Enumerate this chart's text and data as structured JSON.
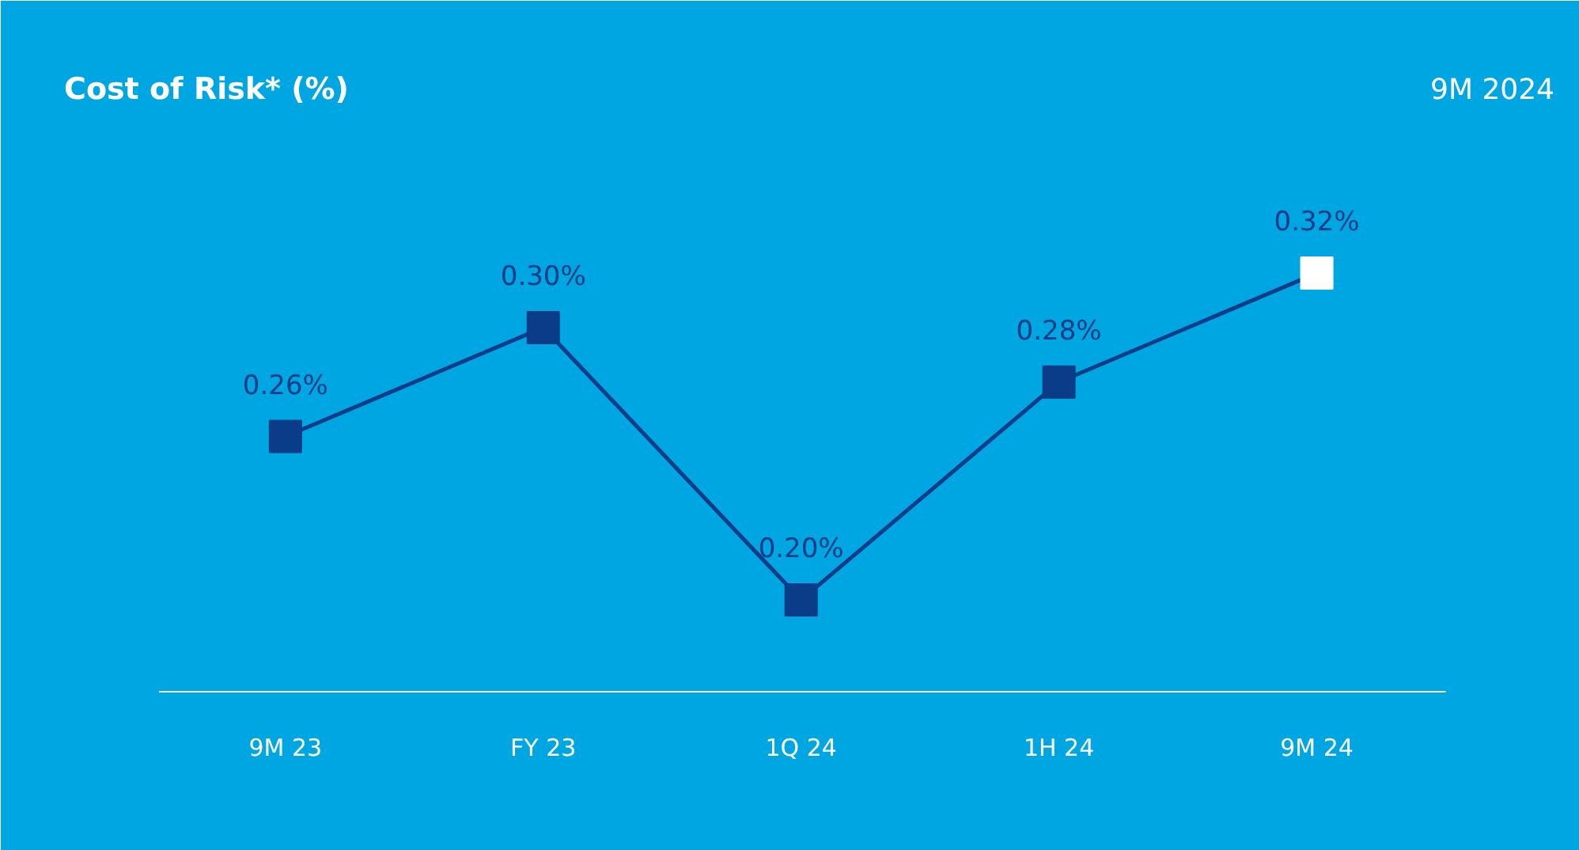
{
  "chart_data": {
    "type": "line",
    "title": "Cost of Risk* (%)",
    "subtitle": "9M 2024",
    "categories": [
      "9M 23",
      "FY 23",
      "1Q 24",
      "1H 24",
      "9M 24"
    ],
    "series": [
      {
        "color": "#0a3c87",
        "colors": [
          "#0a3c87",
          "#0a3c87",
          "#0a3c87",
          "#0a3c87",
          "#ffffff"
        ],
        "values": [
          0.26,
          0.3,
          0.2,
          0.28,
          0.32
        ],
        "value_labels": [
          "0.26%",
          "0.30%",
          "0.20%",
          "0.28%",
          "0.32%"
        ]
      }
    ],
    "ylim": [
      0.166,
      0.42
    ],
    "marker": "square",
    "line_style": "solid",
    "grid": false
  }
}
